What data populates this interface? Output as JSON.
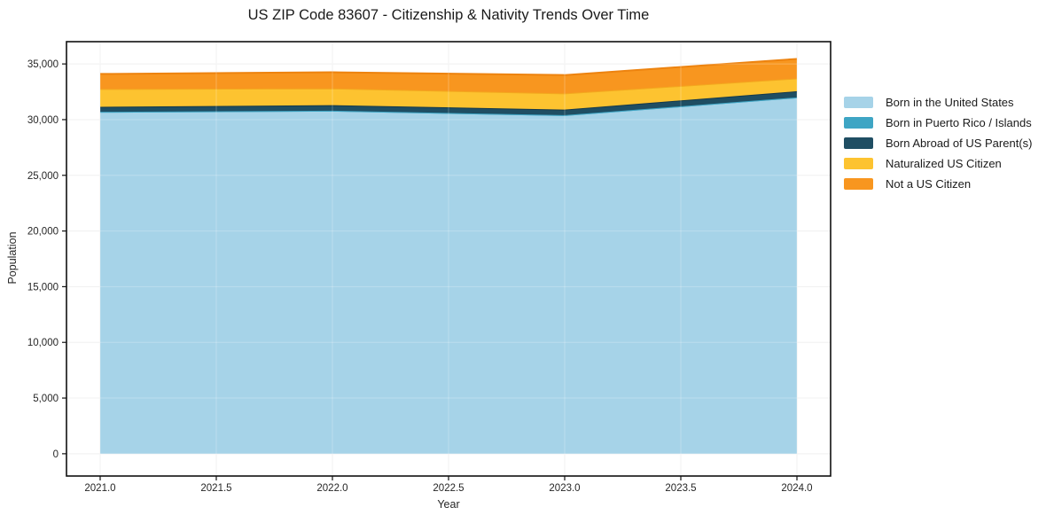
{
  "chart_data": {
    "type": "area",
    "stacked": true,
    "title": "US ZIP Code 83607 - Citizenship & Nativity Trends Over Time",
    "xlabel": "Year",
    "ylabel": "Population",
    "x": [
      2021,
      2022,
      2023,
      2024
    ],
    "series": [
      {
        "name": "Born in the United States",
        "values": [
          30700,
          30800,
          30400,
          32000
        ],
        "color": "#A6D3E8",
        "line_color": "#5FB0CE"
      },
      {
        "name": "Born in Puerto Rico / Islands",
        "values": [
          0,
          0,
          0,
          0
        ],
        "color": "#3EA5C4",
        "line_color": "#3EA5C4"
      },
      {
        "name": "Born Abroad of US Parent(s)",
        "values": [
          450,
          500,
          500,
          550
        ],
        "color": "#1F4E63",
        "line_color": "#15394B"
      },
      {
        "name": "Naturalized US Citizen",
        "values": [
          1600,
          1500,
          1450,
          1150
        ],
        "color": "#FDC330",
        "line_color": "#F3A81E"
      },
      {
        "name": "Not a US Citizen",
        "values": [
          1350,
          1450,
          1650,
          1750
        ],
        "color": "#F8961F",
        "line_color": "#ED830F"
      }
    ],
    "x_ticks": [
      2021.0,
      2021.5,
      2022.0,
      2022.5,
      2023.0,
      2023.5,
      2024.0
    ],
    "x_tick_labels": [
      "2021.0",
      "2021.5",
      "2022.0",
      "2022.5",
      "2023.0",
      "2023.5",
      "2024.0"
    ],
    "y_ticks": [
      0,
      5000,
      10000,
      15000,
      20000,
      25000,
      30000,
      35000
    ],
    "y_tick_labels": [
      "0",
      "5,000",
      "10,000",
      "15,000",
      "20,000",
      "25,000",
      "30,000",
      "35,000"
    ],
    "xlim": [
      2020.855,
      2024.145
    ],
    "ylim": [
      -2000,
      37000
    ],
    "grid": true,
    "legend_position": "right",
    "grid_color": "#EDEDED",
    "axis_color": "#111111",
    "tick_label_color": "#262626"
  }
}
